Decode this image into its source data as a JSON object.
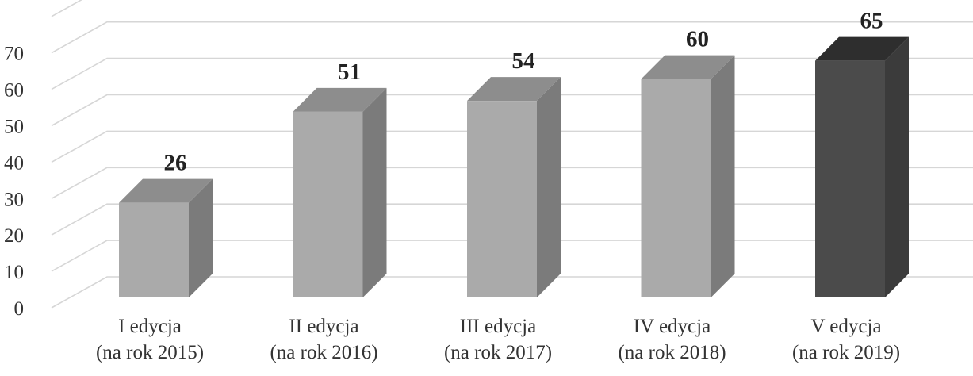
{
  "chart_data": {
    "type": "bar",
    "categories": [
      [
        "I edycja",
        "(na rok 2015)"
      ],
      [
        "II edycja",
        "(na rok 2016)"
      ],
      [
        "III edycja",
        "(na rok 2017)"
      ],
      [
        "IV edycja",
        "(na rok 2018)"
      ],
      [
        "V edycja",
        "(na rok 2019)"
      ]
    ],
    "values": [
      26,
      51,
      54,
      60,
      65
    ],
    "data_labels": [
      "26",
      "51",
      "54",
      "60",
      "65"
    ],
    "y_ticks": [
      "0",
      "10",
      "20",
      "30",
      "40",
      "50",
      "60",
      "70"
    ],
    "ylim": [
      0,
      70
    ],
    "grid": true,
    "legend": "none",
    "three_d": true,
    "colors": {
      "bar_front": "#aaaaaa",
      "bar_side": "#7b7b7b",
      "bar_top": "#8d8d8d",
      "highlight_front": "#4b4b4b",
      "highlight_side": "#3b3b3b",
      "highlight_top": "#2e2e2e",
      "grid": "#d6d6d6"
    },
    "highlight_index": 4
  }
}
